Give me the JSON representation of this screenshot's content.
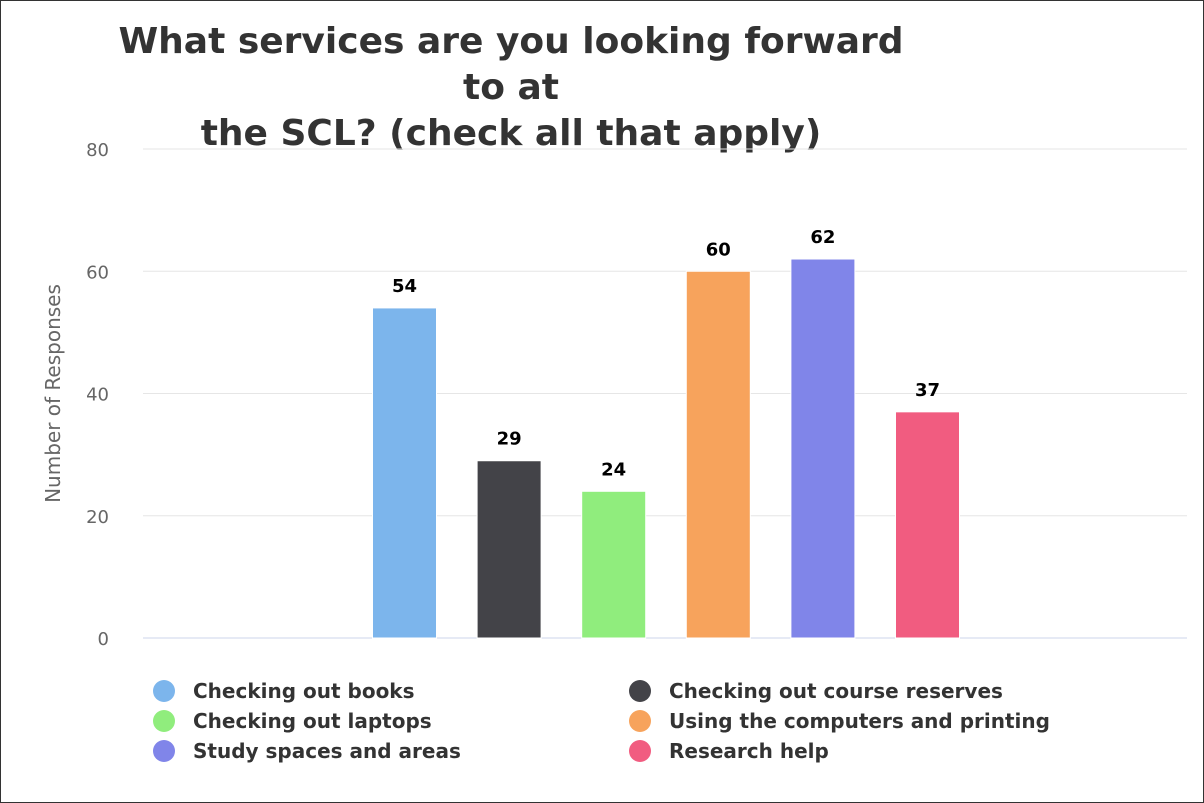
{
  "chart_data": {
    "type": "bar",
    "title_lines": [
      "What services are you looking forward to at",
      "the SCL? (check all that apply)"
    ],
    "xlabel": "",
    "ylabel": "Number of Responses",
    "ylim": [
      0,
      80
    ],
    "yticks": [
      0,
      20,
      40,
      60,
      80
    ],
    "grid": true,
    "legend_position": "bottom",
    "categories": [
      "Checking out books",
      "Checking out course reserves",
      "Checking out laptops",
      "Using the computers and printing",
      "Study spaces and areas",
      "Research help"
    ],
    "values": [
      54,
      29,
      24,
      60,
      62,
      37
    ],
    "colors": [
      "#7cb5ec",
      "#434348",
      "#90ed7d",
      "#f7a35c",
      "#8085e9",
      "#f15c80"
    ]
  }
}
